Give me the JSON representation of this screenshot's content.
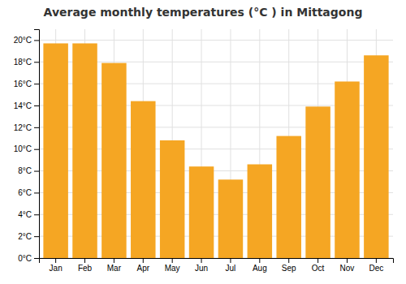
{
  "chart_data": {
    "type": "bar",
    "title": "Average monthly temperatures (°C ) in Mittagong",
    "categories": [
      "Jan",
      "Feb",
      "Mar",
      "Apr",
      "May",
      "Jun",
      "Jul",
      "Aug",
      "Sep",
      "Oct",
      "Nov",
      "Dec"
    ],
    "values": [
      19.7,
      19.7,
      17.9,
      14.4,
      10.8,
      8.4,
      7.2,
      8.6,
      11.2,
      13.9,
      16.2,
      18.6
    ],
    "color": "#F5A623",
    "ylim": [
      0,
      21
    ],
    "yticks": [
      {
        "value": 0,
        "label": "0°C"
      },
      {
        "value": 2,
        "label": "2°C"
      },
      {
        "value": 4,
        "label": "4°C"
      },
      {
        "value": 6,
        "label": "6°C"
      },
      {
        "value": 8,
        "label": "8°C"
      },
      {
        "value": 10,
        "label": "10°C"
      },
      {
        "value": 12,
        "label": "12°C"
      },
      {
        "value": 14,
        "label": "14°C"
      },
      {
        "value": 16,
        "label": "16°C"
      },
      {
        "value": 18,
        "label": "18°C"
      },
      {
        "value": 20,
        "label": "20°C"
      }
    ],
    "grid": true
  }
}
